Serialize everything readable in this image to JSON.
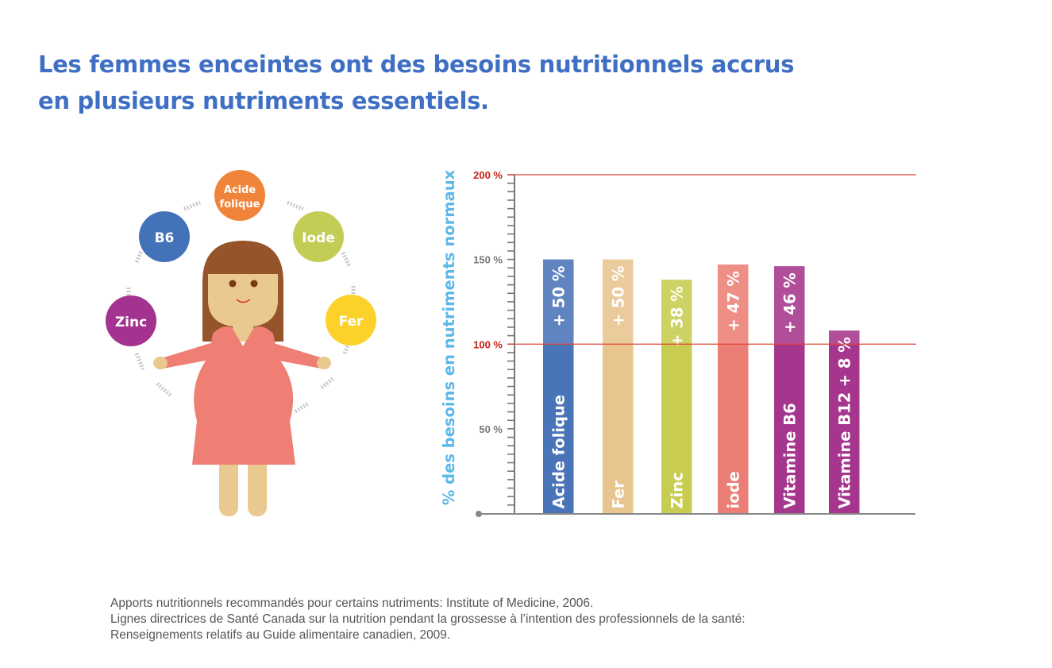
{
  "title": {
    "line1": "Les femmes enceintes ont des besoins nutritionnels accrus",
    "line2": "en plusieurs nutriments essentiels."
  },
  "illustration": {
    "bubbles": [
      {
        "label_line1": "Acide",
        "label_line2": "folique",
        "color": "#ef843a"
      },
      {
        "label": "B6",
        "color": "#4472b8"
      },
      {
        "label": "Iode",
        "color": "#c3cd55"
      },
      {
        "label": "Zinc",
        "color": "#a3338e"
      },
      {
        "label": "Fer",
        "color": "#fcd22a"
      }
    ]
  },
  "chart_data": {
    "type": "bar",
    "title": "",
    "xlabel": "",
    "ylabel": "% des besoins en nutriments normaux",
    "ylim": [
      0,
      200
    ],
    "yticks": [
      {
        "value": 200,
        "label": "200 %",
        "highlight": true
      },
      {
        "value": 150,
        "label": "150 %",
        "highlight": false
      },
      {
        "value": 100,
        "label": "100 %",
        "highlight": true
      },
      {
        "value": 50,
        "label": "50 %",
        "highlight": false
      }
    ],
    "reference_lines": [
      100,
      200
    ],
    "reference_color": "#e0463a",
    "categories": [
      "Acide folique",
      "Fer",
      "Zinc",
      "iode",
      "Vitamine B6",
      "Vitamine B12"
    ],
    "values": [
      150,
      150,
      138,
      147,
      146,
      108
    ],
    "data_labels": [
      "+ 50 %",
      "+ 50 %",
      "+ 38 %",
      "+ 47 %",
      "+ 46 %",
      "+ 8 %"
    ],
    "colors": [
      "#4a74b8",
      "#e8c48f",
      "#c8cc50",
      "#ec7f75",
      "#a6368d",
      "#a6368d"
    ],
    "grid": false
  },
  "footnote": {
    "line1": "Apports nutritionnels recommandés pour certains nutriments: Institute of Medicine, 2006.",
    "line2": "Lignes directrices de Santé Canada sur la nutrition pendant la grossesse à l’intention des professionnels de la santé:",
    "line3": "Renseignements relatifs au Guide alimentaire canadien, 2009."
  }
}
